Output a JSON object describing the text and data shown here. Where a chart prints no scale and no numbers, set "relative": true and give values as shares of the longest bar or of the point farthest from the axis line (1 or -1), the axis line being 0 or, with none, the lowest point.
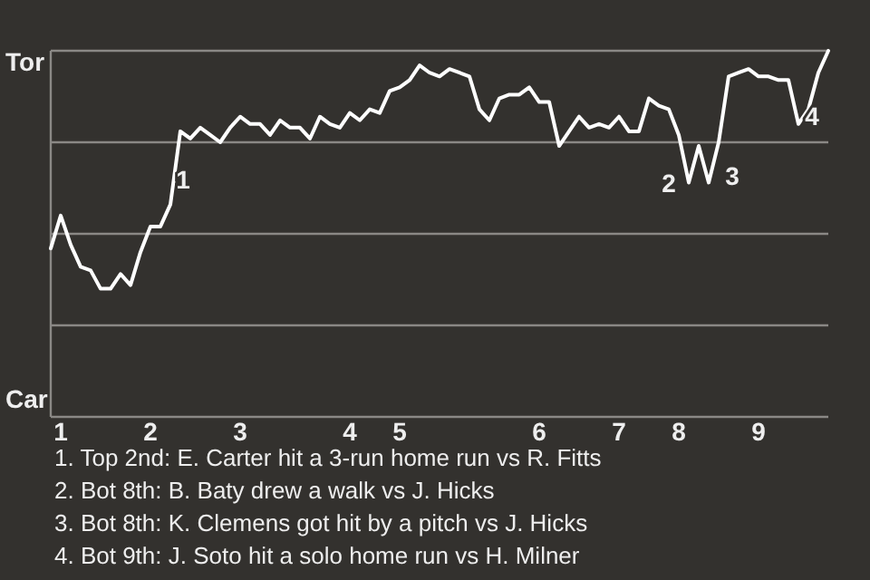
{
  "chart_data": {
    "type": "line",
    "categories": [
      null,
      "1",
      null,
      null,
      null,
      null,
      null,
      null,
      null,
      null,
      "2",
      null,
      null,
      null,
      null,
      null,
      null,
      null,
      null,
      "3",
      null,
      null,
      null,
      null,
      null,
      null,
      null,
      null,
      null,
      null,
      "4",
      null,
      null,
      null,
      null,
      "5",
      null,
      null,
      null,
      null,
      null,
      null,
      null,
      null,
      null,
      null,
      null,
      null,
      null,
      "6",
      null,
      null,
      null,
      null,
      null,
      null,
      null,
      "7",
      null,
      null,
      null,
      null,
      null,
      "8",
      null,
      null,
      null,
      null,
      null,
      null,
      null,
      "9",
      null,
      null,
      null,
      null,
      null,
      null,
      null
    ],
    "series": [
      {
        "color": "#ffffff",
        "values": [
          0.46,
          0.55,
          0.47,
          0.41,
          0.4,
          0.35,
          0.35,
          0.39,
          0.36,
          0.45,
          0.52,
          0.52,
          0.58,
          0.78,
          0.76,
          0.79,
          0.77,
          0.75,
          0.79,
          0.82,
          0.8,
          0.8,
          0.77,
          0.81,
          0.79,
          0.79,
          0.76,
          0.82,
          0.8,
          0.79,
          0.83,
          0.81,
          0.84,
          0.83,
          0.89,
          0.9,
          0.92,
          0.96,
          0.94,
          0.93,
          0.95,
          0.94,
          0.93,
          0.84,
          0.81,
          0.87,
          0.88,
          0.88,
          0.9,
          0.86,
          0.86,
          0.74,
          0.78,
          0.82,
          0.79,
          0.8,
          0.79,
          0.82,
          0.78,
          0.78,
          0.87,
          0.85,
          0.84,
          0.77,
          0.64,
          0.74,
          0.64,
          0.75,
          0.93,
          0.94,
          0.95,
          0.93,
          0.93,
          0.92,
          0.92,
          0.8,
          0.84,
          0.94,
          1.0
        ]
      }
    ],
    "relative": true,
    "grid": "y",
    "marker": "none",
    "annotations": [
      "Tor",
      "Car",
      "1",
      "2",
      "3",
      "4",
      "1. Top 2nd: E. Carter hit a 3-run home run vs R. Fitts",
      "2. Bot 8th: B. Baty drew a walk vs J. Hicks",
      "3. Bot 8th: K. Clemens got hit by a pitch vs J. Hicks",
      "4. Bot 9th: J. Soto hit a solo home run vs H. Milner"
    ]
  }
}
